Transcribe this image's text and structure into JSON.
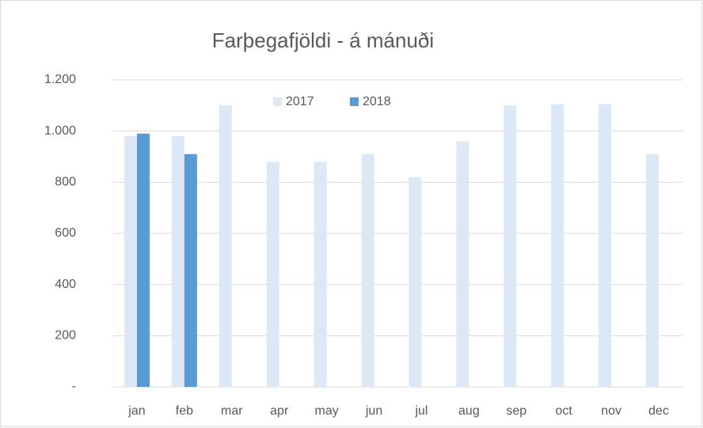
{
  "chart_data": {
    "type": "bar",
    "title": "Farþegafjöldi - á mánuði",
    "categories": [
      "jan",
      "feb",
      "mar",
      "apr",
      "may",
      "jun",
      "jul",
      "aug",
      "sep",
      "oct",
      "nov",
      "dec"
    ],
    "series": [
      {
        "name": "2017",
        "color": "#dde8f6",
        "values": [
          980,
          980,
          1100,
          880,
          880,
          910,
          820,
          960,
          1100,
          1105,
          1105,
          910
        ]
      },
      {
        "name": "2018",
        "color": "#5b9bd5",
        "values": [
          990,
          910,
          null,
          null,
          null,
          null,
          null,
          null,
          null,
          null,
          null,
          null
        ]
      }
    ],
    "ylim": [
      0,
      1200
    ],
    "yticks": [
      {
        "value": 0,
        "label": "-"
      },
      200,
      400,
      600,
      800,
      {
        "value": 1000,
        "label": "1.000"
      },
      {
        "value": 1200,
        "label": "1.200"
      }
    ],
    "grid": true,
    "legend": "top"
  }
}
